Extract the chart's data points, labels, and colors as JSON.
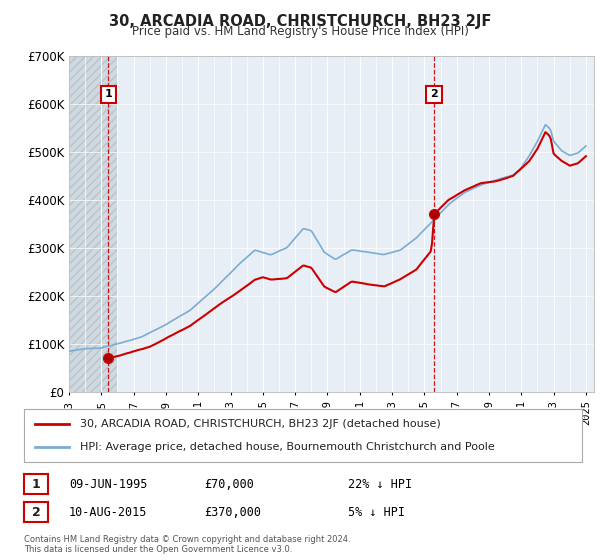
{
  "title": "30, ARCADIA ROAD, CHRISTCHURCH, BH23 2JF",
  "subtitle": "Price paid vs. HM Land Registry's House Price Index (HPI)",
  "ylim": [
    0,
    700000
  ],
  "yticks": [
    0,
    100000,
    200000,
    300000,
    400000,
    500000,
    600000,
    700000
  ],
  "ytick_labels": [
    "£0",
    "£100K",
    "£200K",
    "£300K",
    "£400K",
    "£500K",
    "£600K",
    "£700K"
  ],
  "background_color": "#ffffff",
  "plot_bg_color": "#e8eef5",
  "hatch_bg_color": "#d0d8e0",
  "sale1_price": 70000,
  "sale1_label": "1",
  "sale1_x": 1995.44,
  "sale2_price": 370000,
  "sale2_label": "2",
  "sale2_x": 2015.61,
  "line1_color": "#cc0000",
  "line2_color": "#7aadd4",
  "legend_line1": "30, ARCADIA ROAD, CHRISTCHURCH, BH23 2JF (detached house)",
  "legend_line2": "HPI: Average price, detached house, Bournemouth Christchurch and Poole",
  "annotation1_date": "09-JUN-1995",
  "annotation1_price": "£70,000",
  "annotation1_hpi": "22% ↓ HPI",
  "annotation2_date": "10-AUG-2015",
  "annotation2_price": "£370,000",
  "annotation2_hpi": "5% ↓ HPI",
  "footer": "Contains HM Land Registry data © Crown copyright and database right 2024.\nThis data is licensed under the Open Government Licence v3.0.",
  "xmin": 1993.0,
  "xmax": 2025.5
}
